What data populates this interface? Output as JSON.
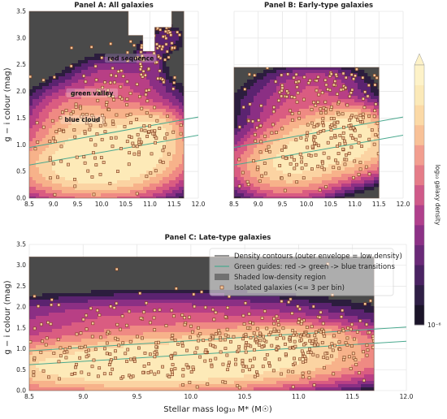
{
  "chart_data": [
    {
      "panel": "A",
      "type": "heatmap",
      "title": "Panel A: All galaxies",
      "xlabel": "",
      "ylabel": "g − i colour (mag)",
      "xlim": [
        8.5,
        12.0
      ],
      "ylim": [
        0.0,
        3.5
      ],
      "xticks": [
        "8.5",
        "9.0",
        "9.5",
        "10.0",
        "10.5",
        "11.0",
        "11.5",
        "12.0"
      ],
      "yticks": [
        "0.0",
        "0.5",
        "1.0",
        "1.5",
        "2.0",
        "2.5",
        "3.0",
        "3.5"
      ],
      "annotations": [
        {
          "text": "red sequence",
          "x": 10.6,
          "y": 2.6
        },
        {
          "text": "green valley",
          "x": 9.8,
          "y": 1.95
        },
        {
          "text": "blue cloud",
          "x": 9.6,
          "y": 1.45
        }
      ],
      "blobs": [
        {
          "x": 9.85,
          "y": 0.6,
          "sx": 0.85,
          "sy": 0.32,
          "w": 1.0
        },
        {
          "x": 10.5,
          "y": 0.95,
          "sx": 0.7,
          "sy": 0.3,
          "w": 0.8
        },
        {
          "x": 11.0,
          "y": 1.3,
          "sx": 0.35,
          "sy": 0.2,
          "w": 0.5
        },
        {
          "x": 9.5,
          "y": 1.35,
          "sx": 0.55,
          "sy": 0.35,
          "w": 0.25
        },
        {
          "x": 10.3,
          "y": 1.7,
          "sx": 0.8,
          "sy": 0.35,
          "w": 0.12
        },
        {
          "x": 10.2,
          "y": 2.3,
          "sx": 0.5,
          "sy": 0.25,
          "w": 0.05
        },
        {
          "x": 11.0,
          "y": 2.6,
          "sx": 0.2,
          "sy": 0.3,
          "w": 0.04
        },
        {
          "x": 11.4,
          "y": 3.0,
          "sx": 0.25,
          "sy": 0.2,
          "w": 0.03
        }
      ],
      "envelope": [
        [
          8.5,
          3.5
        ],
        [
          10.55,
          3.5
        ],
        [
          10.55,
          3.05
        ],
        [
          10.85,
          3.05
        ],
        [
          10.85,
          2.75
        ],
        [
          11.1,
          2.75
        ],
        [
          11.1,
          3.2
        ],
        [
          11.45,
          3.2
        ],
        [
          11.45,
          3.5
        ],
        [
          11.7,
          3.5
        ],
        [
          11.7,
          0.0
        ],
        [
          8.5,
          0.0
        ]
      ],
      "guides": [
        {
          "x": [
            8.5,
            12.0
          ],
          "y": [
            0.62,
            1.18
          ]
        },
        {
          "x": [
            8.5,
            12.0
          ],
          "y": [
            0.95,
            1.52
          ]
        }
      ]
    },
    {
      "panel": "B",
      "type": "heatmap",
      "title": "Panel B: Early-type galaxies",
      "xlabel": "",
      "ylabel": "",
      "xlim": [
        8.5,
        12.0
      ],
      "ylim": [
        0.0,
        3.5
      ],
      "xticks": [
        "8.5",
        "9.0",
        "9.5",
        "10.0",
        "10.5",
        "11.0",
        "11.5",
        "12.0"
      ],
      "yticks": [],
      "blobs": [
        {
          "x": 10.6,
          "y": 1.0,
          "sx": 0.7,
          "sy": 0.3,
          "w": 1.0
        },
        {
          "x": 9.6,
          "y": 0.6,
          "sx": 0.6,
          "sy": 0.3,
          "w": 0.6
        },
        {
          "x": 10.9,
          "y": 1.35,
          "sx": 0.35,
          "sy": 0.2,
          "w": 0.5
        },
        {
          "x": 10.0,
          "y": 1.7,
          "sx": 0.8,
          "sy": 0.35,
          "w": 0.1
        },
        {
          "x": 10.2,
          "y": 2.2,
          "sx": 0.6,
          "sy": 0.2,
          "w": 0.05
        }
      ],
      "envelope": [
        [
          8.5,
          2.45
        ],
        [
          11.5,
          2.45
        ],
        [
          11.5,
          0.0
        ],
        [
          8.5,
          0.0
        ]
      ],
      "guides": [
        {
          "x": [
            8.5,
            12.0
          ],
          "y": [
            0.62,
            1.18
          ]
        },
        {
          "x": [
            8.5,
            12.0
          ],
          "y": [
            0.95,
            1.52
          ]
        }
      ]
    },
    {
      "panel": "C",
      "type": "heatmap",
      "title": "Panel C: Late-type galaxies",
      "xlabel": "Stellar mass log₁₀ M* (M☉)",
      "ylabel": "g − i colour (mag)",
      "xlim": [
        8.5,
        12.0
      ],
      "ylim": [
        0.0,
        3.5
      ],
      "xticks": [
        "8.5",
        "9.0",
        "9.5",
        "10.0",
        "10.5",
        "11.0",
        "11.5",
        "12.0"
      ],
      "yticks": [
        "0.0",
        "0.5",
        "1.0",
        "1.5",
        "2.0",
        "2.5",
        "3.0",
        "3.5"
      ],
      "blobs": [
        {
          "x": 9.5,
          "y": 0.55,
          "sx": 0.9,
          "sy": 0.32,
          "w": 1.0
        },
        {
          "x": 10.3,
          "y": 0.85,
          "sx": 0.8,
          "sy": 0.3,
          "w": 0.7
        },
        {
          "x": 10.9,
          "y": 1.25,
          "sx": 0.4,
          "sy": 0.2,
          "w": 0.4
        },
        {
          "x": 9.8,
          "y": 1.6,
          "sx": 1.1,
          "sy": 0.4,
          "w": 0.12
        }
      ],
      "envelope": [
        [
          8.5,
          3.2
        ],
        [
          11.7,
          3.2
        ],
        [
          11.7,
          0.0
        ],
        [
          8.5,
          0.0
        ]
      ],
      "guides": [
        {
          "x": [
            8.5,
            12.0
          ],
          "y": [
            0.62,
            1.18
          ]
        },
        {
          "x": [
            8.5,
            12.0
          ],
          "y": [
            0.95,
            1.52
          ]
        }
      ]
    }
  ],
  "legend": {
    "placement": "upper-right of Panel C",
    "entries": [
      {
        "label": "Density contours (outer envelope = low density)",
        "kind": "line",
        "color": "#555555"
      },
      {
        "label": "Green guides: red -> green -> blue transitions",
        "kind": "line",
        "color": "#4aa98f"
      },
      {
        "label": "Shaded low-density region",
        "kind": "patch",
        "color": "#4a4a4a"
      },
      {
        "label": "Isolated galaxies (<= 3 per bin)",
        "kind": "marker",
        "color": "#7a3a1a"
      }
    ]
  },
  "colorbar": {
    "label": "log₁₀ galaxy density",
    "min_label": "10⁻⁶",
    "colors": [
      "#1b1429",
      "#2f1f46",
      "#4a2363",
      "#6a2a78",
      "#8c3186",
      "#b0408c",
      "#cf5a89",
      "#e57c88",
      "#f29e8f",
      "#f8c197",
      "#fbd9a6",
      "#fbe9b8",
      "#fdf2c8"
    ]
  },
  "palette": {
    "background": "#4a4a4a",
    "levels": [
      "#2c1d3e",
      "#5b2370",
      "#8b2f84",
      "#b83f85",
      "#da5c81",
      "#ef8a83",
      "#f7b28a",
      "#fbd3a2",
      "#fdeab8"
    ],
    "contour": "#6b4b3a",
    "guide": "#4aa98f",
    "marker": "#7a3a1a"
  }
}
